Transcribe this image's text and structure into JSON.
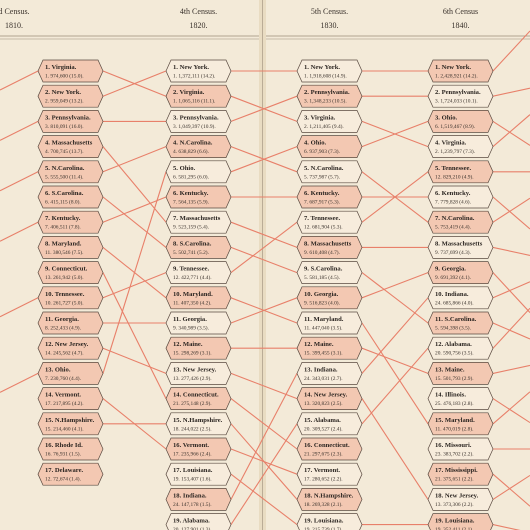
{
  "columns": [
    {
      "title": "d Census.",
      "year": "1810.",
      "cells": [
        {
          "name": "1. Virginia.",
          "detail": "1. 974,600 (15.0)."
        },
        {
          "name": "2. New York.",
          "detail": "2. 959,049 (13.2)."
        },
        {
          "name": "3. Pennsylvania.",
          "detail": "3. 810,091 (16.0)."
        },
        {
          "name": "4. Massachusetts",
          "detail": "4. 700,745 (13.7)."
        },
        {
          "name": "5. N.Carolina.",
          "detail": "5. 555,500 (11.4)."
        },
        {
          "name": "6. S.Carolina.",
          "detail": "6. 415,115 (8.0)."
        },
        {
          "name": "7. Kentucky.",
          "detail": "7. 406,511 (7.8)."
        },
        {
          "name": "8. Maryland.",
          "detail": "11. 380,546 (7.5)."
        },
        {
          "name": "9. Connecticut.",
          "detail": "13. 261,942 (5.0)."
        },
        {
          "name": "10. Tennessee.",
          "detail": "10. 261,727 (5.0)."
        },
        {
          "name": "11. Georgia.",
          "detail": "8. 252,433 (4.9)."
        },
        {
          "name": "12. New Jersey.",
          "detail": "14. 245,562 (4.7)."
        },
        {
          "name": "13. Ohio.",
          "detail": "7. 230,760 (4.4)."
        },
        {
          "name": "14. Vermont.",
          "detail": "17. 217,895 (4.2)."
        },
        {
          "name": "15. N.Hampshire.",
          "detail": "15. 214,460 (4.1)."
        },
        {
          "name": "16. Rhode Id.",
          "detail": "16. 76,931 (1.5)."
        },
        {
          "name": "17. Delaware.",
          "detail": "12. 72,674 (1.4)."
        }
      ]
    },
    {
      "title": "4th Census.",
      "year": "1820.",
      "cells": [
        {
          "name": "1. New York.",
          "detail": "1. 1,372,111 (14.2)."
        },
        {
          "name": "2. Virginia.",
          "detail": "1. 1,065,116 (11.1)."
        },
        {
          "name": "3. Pennsylvania.",
          "detail": "3. 1,049,397 (10.9)."
        },
        {
          "name": "4. N.Carolina.",
          "detail": "4. 638,829 (6.6)."
        },
        {
          "name": "5. Ohio.",
          "detail": "6. 581,295 (6.0)."
        },
        {
          "name": "6. Kentucky.",
          "detail": "7. 564,135 (5.9)."
        },
        {
          "name": "7. Massachusetts",
          "detail": "9. 523,159 (5.4)."
        },
        {
          "name": "8. S.Carolina.",
          "detail": "5. 502,741 (5.2)."
        },
        {
          "name": "9. Tennessee.",
          "detail": "12. 422,771 (4.4)."
        },
        {
          "name": "10. Maryland.",
          "detail": "11. 407,350 (4.2)."
        },
        {
          "name": "11. Georgia.",
          "detail": "9. 340,989 (3.5)."
        },
        {
          "name": "12. Maine.",
          "detail": "15. 298,269 (3.1)."
        },
        {
          "name": "13. New Jersey.",
          "detail": "13. 277,426 (2.9)."
        },
        {
          "name": "14. Connecticut.",
          "detail": "21. 275,148 (2.9)."
        },
        {
          "name": "15. N.Hampshire.",
          "detail": "18. 244,022 (2.5)."
        },
        {
          "name": "16. Vermont.",
          "detail": "17. 235,966 (2.4)."
        },
        {
          "name": "17. Louisiana.",
          "detail": "19. 153,407 (1.6)."
        },
        {
          "name": "18. Indiana.",
          "detail": "24. 147,178 (1.5)."
        },
        {
          "name": "19. Alabama.",
          "detail": "20. 127,901 (1.3)."
        }
      ]
    },
    {
      "title": "5th Census.",
      "year": "1830.",
      "cells": [
        {
          "name": "1. New York.",
          "detail": "1. 1,918,608 (14.9)."
        },
        {
          "name": "2. Pennsylvania.",
          "detail": "3. 1,348,233 (10.5)."
        },
        {
          "name": "3. Virginia.",
          "detail": "2. 1,211,405 (9.4)."
        },
        {
          "name": "4. Ohio.",
          "detail": "6. 937,903 (7.3)."
        },
        {
          "name": "5. N.Carolina.",
          "detail": "5. 737,987 (5.7)."
        },
        {
          "name": "6. Kentucky.",
          "detail": "7. 687,917 (5.3)."
        },
        {
          "name": "7. Tennessee.",
          "detail": "12. 681,904 (5.3)."
        },
        {
          "name": "8. Massachusetts",
          "detail": "9. 610,408 (4.7)."
        },
        {
          "name": "9. S.Carolina.",
          "detail": "5. 581,185 (4.5)."
        },
        {
          "name": "10. Georgia.",
          "detail": "9. 516,823 (4.0)."
        },
        {
          "name": "11. Maryland.",
          "detail": "11. 447,040 (3.5)."
        },
        {
          "name": "12. Maine.",
          "detail": "15. 399,455 (3.1)."
        },
        {
          "name": "13. Indiana.",
          "detail": "24. 343,031 (2.7)."
        },
        {
          "name": "14. New Jersey.",
          "detail": "13. 320,823 (2.5)."
        },
        {
          "name": "15. Alabama.",
          "detail": "20. 309,527 (2.4)."
        },
        {
          "name": "16. Connecticut.",
          "detail": "21. 297,675 (2.3)."
        },
        {
          "name": "17. Vermont.",
          "detail": "17. 280,652 (2.2)."
        },
        {
          "name": "18. N.Hampshire.",
          "detail": "18. 269,328 (2.1)."
        },
        {
          "name": "19. Louisiana.",
          "detail": "19. 215,739 (1.7)."
        }
      ]
    },
    {
      "title": "6th Census",
      "year": "1840.",
      "cells": [
        {
          "name": "1. New York.",
          "detail": "1. 2,428,921 (14.2)."
        },
        {
          "name": "2. Pennsylvania.",
          "detail": "3. 1,724,033 (10.1)."
        },
        {
          "name": "3. Ohio.",
          "detail": "6. 1,519,467 (8.9)."
        },
        {
          "name": "4. Virginia.",
          "detail": "2. 1,239,797 (7.3)."
        },
        {
          "name": "5. Tennessee.",
          "detail": "12. 829,210 (4.9)."
        },
        {
          "name": "6. Kentucky.",
          "detail": "7. 779,828 (4.6)."
        },
        {
          "name": "7. N.Carolina.",
          "detail": "5. 753,419 (4.4)."
        },
        {
          "name": "8. Massachusetts",
          "detail": "9. 737,699 (4.3)."
        },
        {
          "name": "9. Georgia.",
          "detail": "9. 691,392 (4.1)."
        },
        {
          "name": "10. Indiana.",
          "detail": "24. 685,866 (4.0)."
        },
        {
          "name": "11. S.Carolina.",
          "detail": "5. 594,398 (3.5)."
        },
        {
          "name": "12. Alabama.",
          "detail": "20. 590,756 (3.5)."
        },
        {
          "name": "13. Maine.",
          "detail": "15. 501,793 (2.9)."
        },
        {
          "name": "14. Illinois.",
          "detail": "25. 476,183 (2.8)."
        },
        {
          "name": "15. Maryland.",
          "detail": "11. 470,019 (2.8)."
        },
        {
          "name": "16. Missouri.",
          "detail": "23. 383,702 (2.2)."
        },
        {
          "name": "17. Mississippi.",
          "detail": "21. 375,651 (2.2)."
        },
        {
          "name": "18. New Jersey.",
          "detail": "13. 373,306 (2.2)."
        },
        {
          "name": "19. Louisiana.",
          "detail": "19. 352,411 (2.1)."
        }
      ]
    }
  ]
}
